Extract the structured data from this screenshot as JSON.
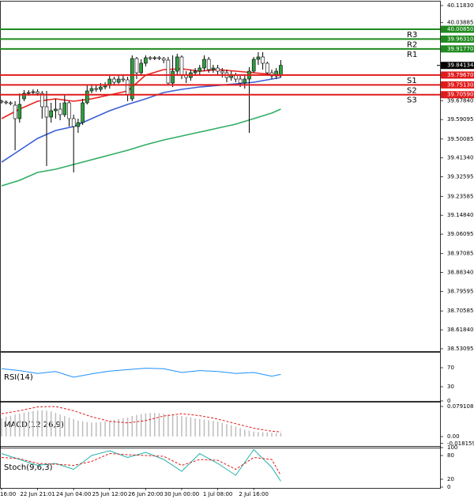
{
  "chart_data": [
    {
      "type": "candlestick",
      "categories": [
        "16:00",
        null,
        null,
        null,
        null,
        null,
        null,
        null,
        "22 Jun 21:01",
        null,
        null,
        null,
        null,
        null,
        null,
        null,
        "24 Jun 04:00",
        null,
        null,
        null,
        null,
        null,
        null,
        null,
        "25 Jun 12:00",
        null,
        null,
        null,
        null,
        null,
        null,
        null,
        "26 Jun 20:00",
        null,
        null,
        null,
        null,
        null,
        null,
        null,
        "30 Jun 00:00",
        null,
        null,
        null,
        null,
        null,
        null,
        null,
        "1 Jul 08:00",
        null,
        null,
        null,
        null,
        null,
        null,
        null,
        "2 Jul 16:00",
        null,
        null,
        null,
        null,
        null,
        null
      ],
      "open": [
        39.6757,
        39.672,
        39.6684,
        39.6574,
        39.5952,
        39.6867,
        39.7123,
        39.7159,
        39.7196,
        39.7123,
        39.6501,
        39.6025,
        39.6318,
        39.6391,
        39.6135,
        39.6684,
        39.5952,
        39.5586,
        39.5769,
        39.6684,
        39.7232,
        39.7342,
        39.7306,
        39.7415,
        39.7488,
        39.7781,
        39.7635,
        39.7781,
        39.7744,
        39.6867,
        39.8732,
        39.8074,
        39.8513,
        39.8769,
        39.8732,
        39.8769,
        39.8732,
        39.8659,
        39.7598,
        39.8147,
        39.8805,
        39.7964,
        39.7854,
        39.8074,
        39.8147,
        39.8293,
        39.8696,
        39.822,
        39.8293,
        39.8147,
        39.8074,
        39.7854,
        39.7964,
        39.7781,
        39.7598,
        39.7781,
        39.8147,
        39.8696,
        39.8805,
        39.8513,
        39.8074,
        39.7927,
        39.7964
      ],
      "high": [
        39.683,
        39.6793,
        39.6757,
        39.6757,
        39.7123,
        39.7269,
        39.7269,
        39.7306,
        39.7306,
        39.7232,
        39.7232,
        39.6684,
        39.6867,
        39.6684,
        39.7049,
        39.6757,
        39.6135,
        39.5952,
        39.6867,
        39.7488,
        39.7488,
        39.7488,
        39.7598,
        39.7635,
        39.7927,
        39.7891,
        39.7927,
        39.7964,
        39.7891,
        39.8878,
        39.8805,
        39.8696,
        39.8878,
        39.8842,
        39.8842,
        39.8842,
        39.8805,
        39.8805,
        39.8878,
        39.8952,
        39.8878,
        39.8147,
        39.822,
        39.8293,
        39.8439,
        39.8878,
        39.8805,
        39.8439,
        39.8439,
        39.8293,
        39.822,
        39.8147,
        39.8074,
        39.7927,
        39.8001,
        39.833,
        39.8805,
        39.9025,
        39.9025,
        39.8586,
        39.822,
        39.8293,
        39.8659
      ],
      "low": [
        39.6647,
        39.661,
        39.6574,
        39.4489,
        39.5769,
        39.6757,
        39.7013,
        39.7049,
        39.7013,
        39.5952,
        39.3757,
        39.5769,
        39.5952,
        39.5879,
        39.6025,
        39.5586,
        39.3465,
        39.5294,
        39.5659,
        39.661,
        39.7123,
        39.7196,
        39.7196,
        39.7306,
        39.7342,
        39.7488,
        39.7562,
        39.7635,
        39.6757,
        39.6757,
        39.7781,
        39.7927,
        39.8366,
        39.8659,
        39.8659,
        39.8659,
        39.8513,
        39.7488,
        39.7415,
        39.8001,
        39.7781,
        39.7598,
        39.7708,
        39.7927,
        39.8001,
        39.8147,
        39.8074,
        39.8074,
        39.7964,
        39.7854,
        39.7635,
        39.7708,
        39.7635,
        39.7415,
        39.7342,
        39.5294,
        39.8074,
        39.8439,
        39.822,
        39.7927,
        39.7781,
        39.7781,
        39.7854
      ],
      "close": [
        39.672,
        39.6684,
        39.6647,
        39.5952,
        39.661,
        39.7123,
        39.7159,
        39.7196,
        39.7123,
        39.6501,
        39.6025,
        39.6318,
        39.6391,
        39.6135,
        39.6684,
        39.5952,
        39.5586,
        39.5769,
        39.6684,
        39.7232,
        39.7342,
        39.7306,
        39.7415,
        39.7488,
        39.7781,
        39.7635,
        39.7781,
        39.7744,
        39.7049,
        39.8732,
        39.8074,
        39.8513,
        39.8769,
        39.8732,
        39.8769,
        39.8732,
        39.8659,
        39.7598,
        39.8147,
        39.8805,
        39.7964,
        39.7854,
        39.8074,
        39.8147,
        39.8293,
        39.8696,
        39.822,
        39.8293,
        39.8147,
        39.8074,
        39.7854,
        39.7964,
        39.7781,
        39.7598,
        39.7781,
        39.8147,
        39.8696,
        39.8805,
        39.8513,
        39.8074,
        39.7927,
        39.8147,
        39.8413
      ],
      "up_color": "#2e9e3e",
      "down_color": "#ffffff",
      "moving_averages": [
        {
          "color": "#e8231f",
          "x": [
            0,
            4,
            8,
            12,
            16,
            20,
            24,
            28,
            32,
            36,
            40,
            44,
            48,
            52,
            56,
            60,
            62
          ],
          "values": [
            39.5952,
            39.6391,
            39.6757,
            39.6867,
            39.6757,
            39.6867,
            39.7049,
            39.7232,
            39.7964,
            39.822,
            39.8257,
            39.8147,
            39.822,
            39.8147,
            39.8074,
            39.8001,
            39.7927
          ]
        },
        {
          "color": "#3a5fd6",
          "x": [
            0,
            4,
            8,
            12,
            16,
            20,
            24,
            28,
            32,
            36,
            40,
            44,
            48,
            52,
            56,
            60,
            62
          ],
          "values": [
            39.394,
            39.4489,
            39.5038,
            39.5404,
            39.5586,
            39.5952,
            39.6318,
            39.661,
            39.6867,
            39.7159,
            39.7306,
            39.7415,
            39.7488,
            39.7562,
            39.7635,
            39.7781,
            39.7854
          ]
        },
        {
          "color": "#2fae62",
          "x": [
            0,
            4,
            8,
            12,
            16,
            20,
            24,
            28,
            32,
            36,
            40,
            44,
            48,
            52,
            56,
            60,
            62
          ],
          "values": [
            39.2843,
            39.3099,
            39.3465,
            39.3611,
            39.383,
            39.405,
            39.4269,
            39.4489,
            39.4745,
            39.4964,
            39.5147,
            39.533,
            39.5513,
            39.5696,
            39.5952,
            39.6208,
            39.6391
          ]
        }
      ],
      "levels": [
        {
          "name": "R3",
          "value": 40.0085,
          "label": "40.00850",
          "color": "#1f8a1f"
        },
        {
          "name": "R2",
          "value": 39.9631,
          "label": "39.96310",
          "color": "#1f8a1f"
        },
        {
          "name": "R1",
          "value": 39.9177,
          "label": "39.91770",
          "color": "#1f8a1f"
        },
        {
          "name": "S1",
          "value": 39.7967,
          "label": "39.79670",
          "color": "#e01b1b"
        },
        {
          "name": "S2",
          "value": 39.7513,
          "label": "39.75130",
          "color": "#e01b1b"
        },
        {
          "name": "S3",
          "value": 39.7059,
          "label": "39.70590",
          "color": "#e01b1b"
        }
      ],
      "current_price": 39.84134,
      "ylim": [
        38.5236,
        40.1329
      ],
      "yticks": [
        {
          "value": 40.1183,
          "label": "40.11830"
        },
        40.03885,
        {
          "value": 39.6784,
          "label": "39.67840"
        },
        39.59095,
        39.50085,
        {
          "value": 39.4134,
          "label": "39.41340"
        },
        39.32595,
        39.23585,
        {
          "value": 39.1484,
          "label": "39.14840"
        },
        39.06095,
        38.97085,
        {
          "value": 38.8834,
          "label": "38.88340"
        },
        38.79595,
        38.70585,
        {
          "value": 38.6184,
          "label": "38.61840"
        },
        38.53095
      ]
    },
    {
      "type": "line",
      "title": "RSI(14)",
      "ylim": [
        0,
        100
      ],
      "yticks": [
        70,
        30,
        0
      ],
      "series": [
        {
          "color": "#1e90ff",
          "x": [
            0,
            4,
            8,
            12,
            16,
            20,
            24,
            28,
            32,
            36,
            40,
            44,
            48,
            52,
            56,
            60,
            62
          ],
          "values": [
            68,
            64,
            58,
            62,
            50,
            57,
            63,
            66,
            69,
            68,
            60,
            64,
            62,
            58,
            60,
            52,
            56
          ]
        }
      ]
    },
    {
      "type": "macd",
      "title": "MACD(12,26,9)",
      "ylim": [
        -0.027,
        0.0895
      ],
      "yticks": [
        0.079108,
        {
          "value": 0,
          "label": "0.00"
        },
        -0.018159
      ],
      "histogram": {
        "color": "#bdbdbd",
        "values": [
          0.048,
          0.052,
          0.055,
          0.058,
          0.06,
          0.063,
          0.065,
          0.067,
          0.068,
          0.069,
          0.068,
          0.066,
          0.062,
          0.058,
          0.054,
          0.05,
          0.046,
          0.042,
          0.04,
          0.038,
          0.037,
          0.037,
          0.038,
          0.04,
          0.042,
          0.044,
          0.046,
          0.048,
          0.05,
          0.054,
          0.057,
          0.059,
          0.061,
          0.062,
          0.062,
          0.061,
          0.06,
          0.058,
          0.056,
          0.055,
          0.054,
          0.052,
          0.05,
          0.048,
          0.046,
          0.045,
          0.043,
          0.041,
          0.039,
          0.036,
          0.033,
          0.03,
          0.026,
          0.022,
          0.018,
          0.015,
          0.013,
          0.012,
          0.012,
          0.011,
          0.01,
          0.009,
          0.009
        ]
      },
      "signal": {
        "color": "#e01b1b",
        "x": [
          0,
          4,
          8,
          12,
          16,
          20,
          24,
          28,
          32,
          36,
          40,
          44,
          48,
          52,
          56,
          60,
          62
        ],
        "values": [
          0.06,
          0.068,
          0.078,
          0.079,
          0.068,
          0.052,
          0.04,
          0.036,
          0.042,
          0.054,
          0.06,
          0.055,
          0.046,
          0.034,
          0.022,
          0.014,
          0.012
        ]
      }
    },
    {
      "type": "line",
      "title": "Stoch(9,6,3)",
      "ylim": [
        0,
        100
      ],
      "yticks": [
        100,
        80,
        20,
        0
      ],
      "series": [
        {
          "color": "#20b2aa",
          "x": [
            0,
            4,
            8,
            12,
            16,
            20,
            24,
            28,
            32,
            36,
            40,
            44,
            48,
            52,
            56,
            60,
            62
          ],
          "values": [
            85,
            70,
            55,
            60,
            45,
            80,
            92,
            75,
            88,
            70,
            40,
            85,
            60,
            30,
            95,
            50,
            15
          ]
        },
        {
          "color": "#e01b1b",
          "dashed": true,
          "x": [
            0,
            4,
            8,
            12,
            16,
            20,
            24,
            28,
            32,
            36,
            40,
            44,
            48,
            52,
            56,
            60,
            62
          ],
          "values": [
            75,
            72,
            60,
            58,
            55,
            65,
            85,
            82,
            80,
            78,
            55,
            70,
            68,
            45,
            75,
            70,
            30
          ]
        }
      ]
    }
  ]
}
